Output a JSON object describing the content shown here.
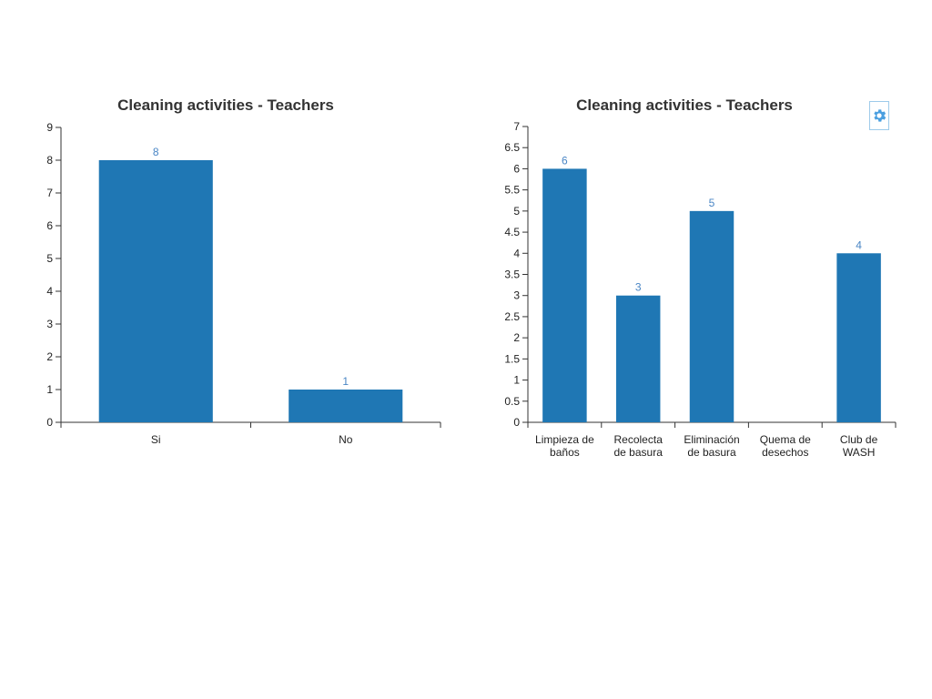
{
  "theme": {
    "bar_color": "#1f77b4",
    "label_color": "#4a86c5",
    "axis_color": "#333333",
    "title_color": "#333333"
  },
  "toolbar": {
    "settings_icon": "gear-icon"
  },
  "chart_data": [
    {
      "type": "bar",
      "title": "Cleaning activities - Teachers",
      "categories": [
        "Si",
        "No"
      ],
      "values": [
        8,
        1
      ],
      "ylim": [
        0,
        9
      ],
      "yticks": [
        0,
        1,
        2,
        3,
        4,
        5,
        6,
        7,
        8,
        9
      ],
      "xlabel": "",
      "ylabel": "",
      "grid": false,
      "legend": false
    },
    {
      "type": "bar",
      "title": "Cleaning activities - Teachers",
      "categories": [
        "Limpieza de baños",
        "Recolecta de basura",
        "Eliminación de basura",
        "Quema de desechos",
        "Club de WASH"
      ],
      "category_lines": [
        [
          "Limpieza de",
          "baños"
        ],
        [
          "Recolecta",
          "de basura"
        ],
        [
          "Eliminación",
          "de basura"
        ],
        [
          "Quema de",
          "desechos"
        ],
        [
          "Club de",
          "WASH"
        ]
      ],
      "values": [
        6,
        3,
        5,
        0,
        4
      ],
      "value_labels": [
        "6",
        "3",
        "5",
        "",
        "4"
      ],
      "ylim": [
        0,
        7
      ],
      "yticks": [
        "0",
        "0.5",
        "1",
        "1.5",
        "2",
        "2.5",
        "3",
        "3.5",
        "4",
        "4.5",
        "5",
        "5.5",
        "6",
        "6.5",
        "7"
      ],
      "xlabel": "",
      "ylabel": "",
      "grid": false,
      "legend": false
    }
  ]
}
